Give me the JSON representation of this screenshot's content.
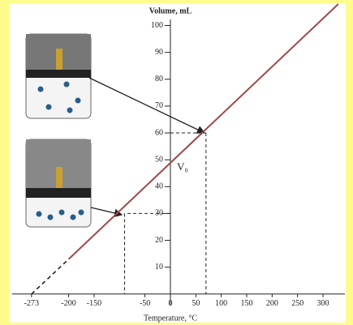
{
  "chart_data": {
    "type": "line",
    "y_axis_title": "Volume, mL",
    "x_axis_title": "Temperature, °C",
    "xlim": [
      -311,
      343
    ],
    "ylim": [
      -6.7,
      108
    ],
    "xticks": [
      -273,
      -200,
      -150,
      -50,
      0,
      50,
      100,
      150,
      200,
      250,
      300
    ],
    "yticks": [
      10,
      20,
      30,
      40,
      50,
      60,
      70,
      80,
      90,
      100
    ],
    "series": [
      {
        "x": [
          -273,
          -200
        ],
        "values": [
          0,
          13
        ],
        "color": "#222222",
        "dashed": true
      },
      {
        "x": [
          -200,
          330
        ],
        "values": [
          13,
          108
        ],
        "color": "#a04848",
        "dashed": false
      }
    ],
    "guides": [
      {
        "x": 70,
        "y": 60
      },
      {
        "x": -90,
        "y": 30
      }
    ],
    "annotation": {
      "text": "V₀",
      "x": 0,
      "y": 47
    }
  }
}
